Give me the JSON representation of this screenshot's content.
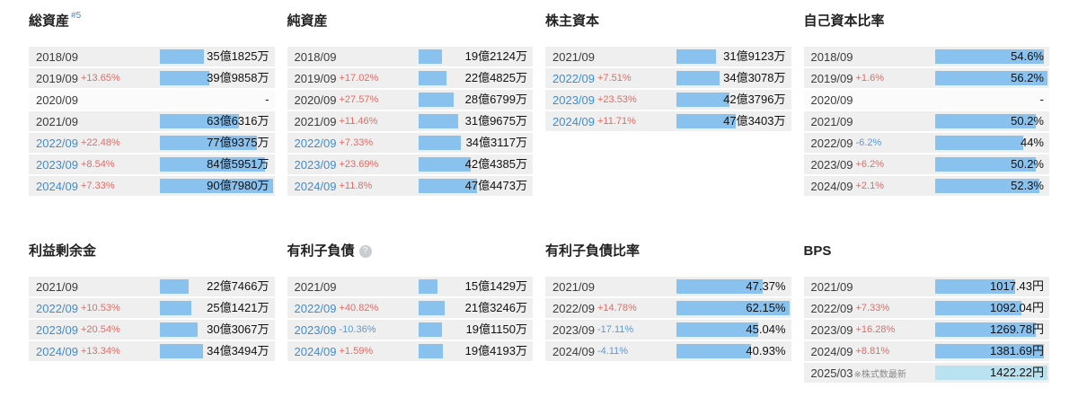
{
  "colors": {
    "bar": "#89c1ef",
    "bar_light": "#b9e2f0",
    "row_bg": "#efefef",
    "row_bg_empty": "#fbfbfb",
    "link": "#3e8ecc",
    "pos": "#e06c65",
    "neg": "#5a9bd5",
    "value": "#111111"
  },
  "chart_data": [
    {
      "type": "bar",
      "orientation": "horizontal",
      "title": "総資産",
      "title_sup": "#5",
      "info_glyph": "",
      "unit": "万円",
      "bar_scale": "shared-monetary-max-907980",
      "categories": [
        "2018/09",
        "2019/09",
        "2020/09",
        "2021/09",
        "2022/09",
        "2023/09",
        "2024/09"
      ],
      "values": [
        351825,
        399858,
        null,
        636316,
        779375,
        845951,
        907980
      ],
      "rows": [
        {
          "year": "2018/09",
          "change": "",
          "label": "35億1825万",
          "bar": 38.7,
          "link": false
        },
        {
          "year": "2019/09",
          "change": "+13.65%",
          "label": "39億9858万",
          "bar": 44.0,
          "link": false
        },
        {
          "year": "2020/09",
          "change": "",
          "label": "-",
          "bar": 0,
          "link": false,
          "empty": true
        },
        {
          "year": "2021/09",
          "change": "",
          "label": "63億6316万",
          "bar": 70.1,
          "link": false
        },
        {
          "year": "2022/09",
          "change": "+22.48%",
          "label": "77億9375万",
          "bar": 85.8,
          "link": true
        },
        {
          "year": "2023/09",
          "change": "+8.54%",
          "label": "84億5951万",
          "bar": 93.2,
          "link": true
        },
        {
          "year": "2024/09",
          "change": "+7.33%",
          "label": "90億7980万",
          "bar": 100,
          "link": true
        }
      ]
    },
    {
      "type": "bar",
      "orientation": "horizontal",
      "title": "純資産",
      "title_sup": "",
      "info_glyph": "",
      "unit": "万円",
      "bar_scale": "shared-monetary-max-907980",
      "categories": [
        "2018/09",
        "2019/09",
        "2020/09",
        "2021/09",
        "2022/09",
        "2023/09",
        "2024/09"
      ],
      "values": [
        192124,
        224825,
        286799,
        319675,
        343117,
        424385,
        474473
      ],
      "rows": [
        {
          "year": "2018/09",
          "change": "",
          "label": "19億2124万",
          "bar": 21.2,
          "link": false
        },
        {
          "year": "2019/09",
          "change": "+17.02%",
          "label": "22億4825万",
          "bar": 24.8,
          "link": false
        },
        {
          "year": "2020/09",
          "change": "+27.57%",
          "label": "28億6799万",
          "bar": 31.6,
          "link": false
        },
        {
          "year": "2021/09",
          "change": "+11.46%",
          "label": "31億9675万",
          "bar": 35.2,
          "link": false
        },
        {
          "year": "2022/09",
          "change": "+7.33%",
          "label": "34億3117万",
          "bar": 37.8,
          "link": true
        },
        {
          "year": "2023/09",
          "change": "+23.69%",
          "label": "42億4385万",
          "bar": 46.7,
          "link": true
        },
        {
          "year": "2024/09",
          "change": "+11.8%",
          "label": "47億4473万",
          "bar": 52.3,
          "link": true
        }
      ]
    },
    {
      "type": "bar",
      "orientation": "horizontal",
      "title": "株主資本",
      "title_sup": "",
      "info_glyph": "",
      "unit": "万円",
      "bar_scale": "shared-monetary-max-907980",
      "categories": [
        "2021/09",
        "2022/09",
        "2023/09",
        "2024/09"
      ],
      "values": [
        319123,
        343078,
        423796,
        473403
      ],
      "rows": [
        {
          "year": "2021/09",
          "change": "",
          "label": "31億9123万",
          "bar": 35.1,
          "link": false
        },
        {
          "year": "2022/09",
          "change": "+7.51%",
          "label": "34億3078万",
          "bar": 37.8,
          "link": true
        },
        {
          "year": "2023/09",
          "change": "+23.53%",
          "label": "42億3796万",
          "bar": 46.7,
          "link": true
        },
        {
          "year": "2024/09",
          "change": "+11.71%",
          "label": "47億3403万",
          "bar": 52.1,
          "link": true
        }
      ]
    },
    {
      "type": "bar",
      "orientation": "horizontal",
      "title": "自己資本比率",
      "title_sup": "",
      "info_glyph": "",
      "unit": "%",
      "bar_scale": "self-max-56.2",
      "categories": [
        "2018/09",
        "2019/09",
        "2020/09",
        "2021/09",
        "2022/09",
        "2023/09",
        "2024/09"
      ],
      "values": [
        54.6,
        56.2,
        null,
        50.2,
        44,
        50.2,
        52.3
      ],
      "rows": [
        {
          "year": "2018/09",
          "change": "",
          "label": "54.6%",
          "bar": 97.2,
          "link": false
        },
        {
          "year": "2019/09",
          "change": "+1.6%",
          "label": "56.2%",
          "bar": 100,
          "link": false
        },
        {
          "year": "2020/09",
          "change": "",
          "label": "-",
          "bar": 0,
          "link": false,
          "empty": true
        },
        {
          "year": "2021/09",
          "change": "",
          "label": "50.2%",
          "bar": 89.3,
          "link": false
        },
        {
          "year": "2022/09",
          "change": "-6.2%",
          "label": "44%",
          "bar": 78.3,
          "link": false
        },
        {
          "year": "2023/09",
          "change": "+6.2%",
          "label": "50.2%",
          "bar": 89.3,
          "link": false
        },
        {
          "year": "2024/09",
          "change": "+2.1%",
          "label": "52.3%",
          "bar": 93.1,
          "link": false
        }
      ]
    },
    {
      "type": "bar",
      "orientation": "horizontal",
      "title": "利益剰余金",
      "title_sup": "",
      "info_glyph": "",
      "unit": "万円",
      "bar_scale": "shared-monetary-max-907980",
      "categories": [
        "2021/09",
        "2022/09",
        "2023/09",
        "2024/09"
      ],
      "values": [
        227466,
        251421,
        303067,
        343494
      ],
      "rows": [
        {
          "year": "2021/09",
          "change": "",
          "label": "22億7466万",
          "bar": 25.1,
          "link": false
        },
        {
          "year": "2022/09",
          "change": "+10.53%",
          "label": "25億1421万",
          "bar": 27.7,
          "link": true
        },
        {
          "year": "2023/09",
          "change": "+20.54%",
          "label": "30億3067万",
          "bar": 33.4,
          "link": true
        },
        {
          "year": "2024/09",
          "change": "+13.34%",
          "label": "34億3494万",
          "bar": 37.8,
          "link": true
        }
      ]
    },
    {
      "type": "bar",
      "orientation": "horizontal",
      "title": "有利子負債",
      "title_sup": "",
      "info_glyph": "?",
      "unit": "万円",
      "bar_scale": "shared-monetary-max-907980",
      "categories": [
        "2021/09",
        "2022/09",
        "2023/09",
        "2024/09"
      ],
      "values": [
        151429,
        213246,
        191150,
        194193
      ],
      "rows": [
        {
          "year": "2021/09",
          "change": "",
          "label": "15億1429万",
          "bar": 16.7,
          "link": false
        },
        {
          "year": "2022/09",
          "change": "+40.82%",
          "label": "21億3246万",
          "bar": 23.5,
          "link": true
        },
        {
          "year": "2023/09",
          "change": "-10.36%",
          "label": "19億1150万",
          "bar": 21.1,
          "link": true
        },
        {
          "year": "2024/09",
          "change": "+1.59%",
          "label": "19億4193万",
          "bar": 21.4,
          "link": true
        }
      ]
    },
    {
      "type": "bar",
      "orientation": "horizontal",
      "title": "有利子負債比率",
      "title_sup": "",
      "info_glyph": "",
      "unit": "%",
      "bar_scale": "self-max-62.15",
      "categories": [
        "2021/09",
        "2022/09",
        "2023/09",
        "2024/09"
      ],
      "values": [
        47.37,
        62.15,
        45.04,
        40.93
      ],
      "rows": [
        {
          "year": "2021/09",
          "change": "",
          "label": "47.37%",
          "bar": 76.2,
          "link": false
        },
        {
          "year": "2022/09",
          "change": "+14.78%",
          "label": "62.15%",
          "bar": 100,
          "link": false
        },
        {
          "year": "2023/09",
          "change": "-17.11%",
          "label": "45.04%",
          "bar": 72.5,
          "link": false
        },
        {
          "year": "2024/09",
          "change": "-4.11%",
          "label": "40.93%",
          "bar": 65.9,
          "link": false
        }
      ]
    },
    {
      "type": "bar",
      "orientation": "horizontal",
      "title": "BPS",
      "title_sup": "",
      "info_glyph": "",
      "unit": "円",
      "bar_scale": "self-max-1422.22",
      "categories": [
        "2021/09",
        "2022/09",
        "2023/09",
        "2024/09",
        "2025/03"
      ],
      "values": [
        1017.43,
        1092.04,
        1269.78,
        1381.69,
        1422.22
      ],
      "rows": [
        {
          "year": "2021/09",
          "change": "",
          "label": "1017.43円",
          "bar": 71.5,
          "link": false
        },
        {
          "year": "2022/09",
          "change": "+7.33%",
          "label": "1092.04円",
          "bar": 76.8,
          "link": false
        },
        {
          "year": "2023/09",
          "change": "+16.28%",
          "label": "1269.78円",
          "bar": 89.3,
          "link": false
        },
        {
          "year": "2024/09",
          "change": "+8.81%",
          "label": "1381.69円",
          "bar": 97.2,
          "link": false
        },
        {
          "year": "2025/03",
          "change": "",
          "note": "※株式数最新",
          "label": "1422.22円",
          "bar": 100,
          "link": false,
          "light": true
        }
      ]
    }
  ]
}
